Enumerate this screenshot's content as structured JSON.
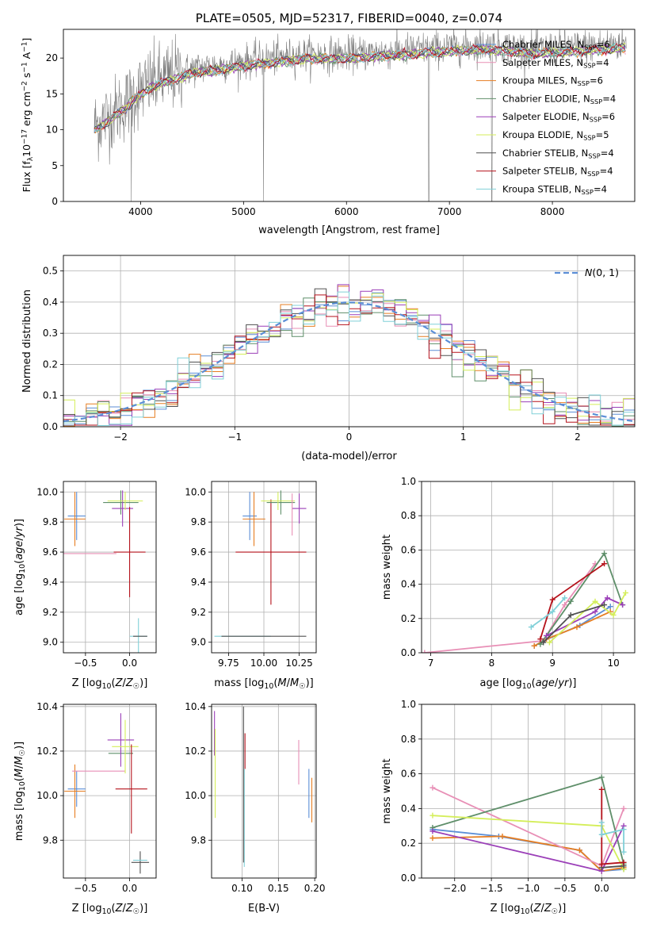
{
  "chart_data": [
    {
      "id": "spectrum",
      "type": "line",
      "title": "PLATE=0505, MJD=52317, FIBERID=0040, z=0.074",
      "xlabel": "wavelength [Angstrom, rest frame]",
      "ylabel": "Flux [f_λ10^-17 erg cm^-2 s^-1 A^-1]",
      "xlim": [
        3250,
        8800
      ],
      "ylim": [
        0,
        24
      ],
      "xticks": [
        4000,
        5000,
        6000,
        7000,
        8000
      ],
      "yticks": [
        0,
        5,
        10,
        15,
        20
      ],
      "legend_position": "right",
      "series": [
        {
          "name": "Chabrier MILES, N_SSP=6",
          "color": "#5b8ed6"
        },
        {
          "name": "Salpeter MILES, N_SSP=4",
          "color": "#e88fb6"
        },
        {
          "name": "Kroupa MILES, N_SSP=6",
          "color": "#e67e22"
        },
        {
          "name": "Chabrier ELODIE, N_SSP=4",
          "color": "#5f8f6a"
        },
        {
          "name": "Salpeter ELODIE, N_SSP=6",
          "color": "#9b3fb8"
        },
        {
          "name": "Kroupa ELODIE, N_SSP=5",
          "color": "#d4ee5a"
        },
        {
          "name": "Chabrier STELIB, N_SSP=4",
          "color": "#505050"
        },
        {
          "name": "Salpeter STELIB, N_SSP=4",
          "color": "#b5121b"
        },
        {
          "name": "Kroupa STELIB, N_SSP=4",
          "color": "#80d0d8"
        }
      ],
      "data_color": "#808080",
      "continuum": [
        [
          3550,
          10.5
        ],
        [
          3700,
          12
        ],
        [
          3850,
          13.5
        ],
        [
          3950,
          15
        ],
        [
          4100,
          16.5
        ],
        [
          4300,
          17.5
        ],
        [
          4500,
          18.5
        ],
        [
          4800,
          19
        ],
        [
          5000,
          19.5
        ],
        [
          5300,
          20
        ],
        [
          5600,
          20.5
        ],
        [
          6000,
          20.5
        ],
        [
          6500,
          21
        ],
        [
          7000,
          21.5
        ],
        [
          7400,
          21.8
        ],
        [
          7800,
          21.2
        ],
        [
          8200,
          21.5
        ],
        [
          8700,
          22
        ]
      ]
    },
    {
      "id": "histogram",
      "type": "line",
      "xlabel": "(data-model)/error",
      "ylabel": "Normed distribution",
      "xlim": [
        -2.5,
        2.5
      ],
      "ylim": [
        0,
        0.55
      ],
      "xticks": [
        -2,
        -1,
        0,
        1,
        2
      ],
      "yticks": [
        0.0,
        0.1,
        0.2,
        0.3,
        0.4,
        0.5
      ],
      "legend": "N(0,1)",
      "legend_color": "#5b8ed6",
      "bin_width": 0.1,
      "grid": true
    },
    {
      "id": "age_vs_Z",
      "type": "scatter",
      "xlabel": "Z [log10(Z/Z☉)]",
      "ylabel": "age  [log10(age/yr)]",
      "xlim": [
        -0.75,
        0.3
      ],
      "ylim": [
        8.93,
        10.07
      ],
      "xticks": [
        -0.5,
        0.0
      ],
      "yticks": [
        9.0,
        9.2,
        9.4,
        9.6,
        9.8,
        10.0
      ],
      "grid": true,
      "points": [
        {
          "x": -0.6,
          "y": 9.84,
          "xerr": 0.1,
          "yerr": 0.16,
          "color": "#5b8ed6"
        },
        {
          "x": -0.62,
          "y": 9.82,
          "xerr": 0.12,
          "yerr": 0.18,
          "color": "#e67e22"
        },
        {
          "x": -0.45,
          "y": 9.59,
          "xerr": 0.3,
          "yerr": 0.0,
          "color": "#e88fb6"
        },
        {
          "x": -0.1,
          "y": 9.93,
          "xerr": 0.2,
          "yerr": 0.08,
          "color": "#5f8f6a"
        },
        {
          "x": -0.08,
          "y": 9.89,
          "xerr": 0.12,
          "yerr": 0.12,
          "color": "#9b3fb8"
        },
        {
          "x": -0.05,
          "y": 9.94,
          "xerr": 0.2,
          "yerr": 0.06,
          "color": "#d4ee5a"
        },
        {
          "x": 0.0,
          "y": 9.6,
          "xerr": 0.18,
          "yerr": 0.3,
          "color": "#b5121b"
        },
        {
          "x": 0.1,
          "y": 9.04,
          "xerr": 0.1,
          "yerr": 0.12,
          "color": "#80d0d8"
        },
        {
          "x": 0.12,
          "y": 9.04,
          "xerr": 0.08,
          "yerr": 0.0,
          "color": "#505050"
        }
      ]
    },
    {
      "id": "age_vs_mass",
      "type": "scatter",
      "xlabel": "mass [log10(M/M☉)]",
      "xlim": [
        9.63,
        10.37
      ],
      "ylim": [
        8.93,
        10.07
      ],
      "xticks": [
        9.75,
        10.0,
        10.25
      ],
      "yticks": [
        9.0,
        9.2,
        9.4,
        9.6,
        9.8,
        10.0
      ],
      "grid": true,
      "points": [
        {
          "x": 9.85,
          "y": 9.04,
          "xerr": 0.2,
          "yerr": 0.0,
          "color": "#80d0d8"
        },
        {
          "x": 10.0,
          "y": 9.04,
          "xerr": 0.3,
          "yerr": 0.0,
          "color": "#505050"
        },
        {
          "x": 9.9,
          "y": 9.84,
          "xerr": 0.05,
          "yerr": 0.16,
          "color": "#5b8ed6"
        },
        {
          "x": 9.93,
          "y": 9.82,
          "xerr": 0.08,
          "yerr": 0.18,
          "color": "#e67e22"
        },
        {
          "x": 10.05,
          "y": 9.6,
          "xerr": 0.25,
          "yerr": 0.35,
          "color": "#b5121b"
        },
        {
          "x": 10.12,
          "y": 9.93,
          "xerr": 0.1,
          "yerr": 0.08,
          "color": "#5f8f6a"
        },
        {
          "x": 10.1,
          "y": 9.94,
          "xerr": 0.12,
          "yerr": 0.06,
          "color": "#d4ee5a"
        },
        {
          "x": 10.25,
          "y": 9.89,
          "xerr": 0.05,
          "yerr": 0.1,
          "color": "#9b3fb8"
        },
        {
          "x": 10.2,
          "y": 9.85,
          "xerr": 0.0,
          "yerr": 0.14,
          "color": "#e88fb6"
        }
      ]
    },
    {
      "id": "weight_vs_age",
      "type": "line",
      "xlabel": "age  [log10(age/yr)]",
      "ylabel": "mass weight",
      "xlim": [
        6.85,
        10.35
      ],
      "ylim": [
        0,
        1.0
      ],
      "xticks": [
        7,
        8,
        9,
        10
      ],
      "yticks": [
        0.0,
        0.2,
        0.4,
        0.6,
        0.8,
        1.0
      ],
      "grid": true,
      "series": [
        {
          "color": "#5b8ed6",
          "points": [
            [
              8.7,
              0.04
            ],
            [
              8.85,
              0.07
            ],
            [
              9.45,
              0.16
            ],
            [
              9.95,
              0.27
            ]
          ]
        },
        {
          "color": "#e67e22",
          "points": [
            [
              8.7,
              0.04
            ],
            [
              8.9,
              0.08
            ],
            [
              9.4,
              0.15
            ],
            [
              9.95,
              0.24
            ]
          ]
        },
        {
          "color": "#e88fb6",
          "points": [
            [
              6.9,
              0.0
            ],
            [
              8.85,
              0.07
            ],
            [
              9.2,
              0.28
            ],
            [
              9.7,
              0.52
            ]
          ]
        },
        {
          "color": "#5f8f6a",
          "points": [
            [
              8.8,
              0.05
            ],
            [
              9.3,
              0.3
            ],
            [
              9.85,
              0.58
            ],
            [
              10.15,
              0.28
            ]
          ]
        },
        {
          "color": "#9b3fb8",
          "points": [
            [
              8.9,
              0.1
            ],
            [
              9.7,
              0.24
            ],
            [
              9.9,
              0.32
            ],
            [
              10.15,
              0.28
            ]
          ]
        },
        {
          "color": "#d4ee5a",
          "points": [
            [
              8.95,
              0.06
            ],
            [
              9.7,
              0.3
            ],
            [
              10.0,
              0.22
            ],
            [
              10.2,
              0.35
            ]
          ]
        },
        {
          "color": "#505050",
          "points": [
            [
              8.85,
              0.06
            ],
            [
              9.3,
              0.22
            ],
            [
              9.85,
              0.28
            ]
          ]
        },
        {
          "color": "#b5121b",
          "points": [
            [
              8.8,
              0.08
            ],
            [
              9.0,
              0.31
            ],
            [
              9.85,
              0.52
            ]
          ]
        },
        {
          "color": "#80d0d8",
          "points": [
            [
              8.65,
              0.15
            ],
            [
              9.0,
              0.24
            ],
            [
              9.2,
              0.32
            ]
          ]
        }
      ]
    },
    {
      "id": "mass_vs_Z",
      "type": "scatter",
      "xlabel": "Z [log10(Z/Z☉)]",
      "ylabel": "mass [log10(M/M☉)]",
      "xlim": [
        -0.75,
        0.3
      ],
      "ylim": [
        9.63,
        10.41
      ],
      "xticks": [
        -0.5,
        0.0
      ],
      "yticks": [
        9.8,
        10.0,
        10.2,
        10.4
      ],
      "grid": true,
      "points": [
        {
          "x": -0.6,
          "y": 10.03,
          "xerr": 0.1,
          "yerr": 0.08,
          "color": "#5b8ed6"
        },
        {
          "x": -0.62,
          "y": 10.02,
          "xerr": 0.12,
          "yerr": 0.12,
          "color": "#e67e22"
        },
        {
          "x": -0.35,
          "y": 10.11,
          "xerr": 0.3,
          "yerr": 0.0,
          "color": "#e88fb6"
        },
        {
          "x": -0.1,
          "y": 10.19,
          "xerr": 0.14,
          "yerr": 0.0,
          "color": "#5f8f6a"
        },
        {
          "x": -0.1,
          "y": 10.25,
          "xerr": 0.15,
          "yerr": 0.12,
          "color": "#9b3fb8"
        },
        {
          "x": -0.05,
          "y": 10.22,
          "xerr": 0.15,
          "yerr": 0.12,
          "color": "#d4ee5a"
        },
        {
          "x": 0.02,
          "y": 10.03,
          "xerr": 0.18,
          "yerr": 0.2,
          "color": "#b5121b"
        },
        {
          "x": 0.12,
          "y": 9.7,
          "xerr": 0.1,
          "yerr": 0.05,
          "color": "#505050"
        },
        {
          "x": 0.12,
          "y": 9.71,
          "xerr": 0.08,
          "yerr": 0.0,
          "color": "#80d0d8"
        }
      ]
    },
    {
      "id": "mass_vs_ebv",
      "type": "scatter",
      "xlabel": "E(B-V)",
      "xlim": [
        0.058,
        0.202
      ],
      "ylim": [
        9.63,
        10.41
      ],
      "xticks": [
        0.1,
        0.15,
        0.2
      ],
      "yticks": [
        9.8,
        10.0,
        10.2,
        10.4
      ],
      "grid": true,
      "points": [
        {
          "x": 0.062,
          "y": 10.28,
          "xerr": 0.0,
          "yerr": 0.1,
          "color": "#9b3fb8"
        },
        {
          "x": 0.063,
          "y": 10.1,
          "xerr": 0.0,
          "yerr": 0.2,
          "color": "#d4ee5a"
        },
        {
          "x": 0.104,
          "y": 10.2,
          "xerr": 0.0,
          "yerr": 0.08,
          "color": "#b5121b"
        },
        {
          "x": 0.103,
          "y": 9.9,
          "xerr": 0.0,
          "yerr": 0.22,
          "color": "#80d0d8"
        },
        {
          "x": 0.102,
          "y": 10.05,
          "xerr": 0.0,
          "yerr": 0.35,
          "color": "#505050"
        },
        {
          "x": 0.178,
          "y": 10.15,
          "xerr": 0.0,
          "yerr": 0.1,
          "color": "#e88fb6"
        },
        {
          "x": 0.192,
          "y": 10.01,
          "xerr": 0.0,
          "yerr": 0.11,
          "color": "#5b8ed6"
        },
        {
          "x": 0.196,
          "y": 9.98,
          "xerr": 0.0,
          "yerr": 0.1,
          "color": "#e67e22"
        }
      ]
    },
    {
      "id": "weight_vs_Z",
      "type": "line",
      "xlabel": "Z [log10(Z/Z☉)]",
      "ylabel": "mass weight",
      "xlim": [
        -2.45,
        0.45
      ],
      "ylim": [
        0,
        1.0
      ],
      "xticks": [
        -2.0,
        -1.5,
        -1.0,
        -0.5,
        0.0
      ],
      "yticks": [
        0.0,
        0.2,
        0.4,
        0.6,
        0.8,
        1.0
      ],
      "grid": true,
      "series": [
        {
          "color": "#5b8ed6",
          "points": [
            [
              -2.3,
              0.28
            ],
            [
              -1.4,
              0.24
            ],
            [
              -0.3,
              0.16
            ],
            [
              0.0,
              0.04
            ],
            [
              0.3,
              0.05
            ]
          ]
        },
        {
          "color": "#e67e22",
          "points": [
            [
              -2.3,
              0.23
            ],
            [
              -1.35,
              0.24
            ],
            [
              -0.3,
              0.16
            ],
            [
              0.0,
              0.04
            ],
            [
              0.3,
              0.06
            ]
          ]
        },
        {
          "color": "#e88fb6",
          "points": [
            [
              -2.3,
              0.52
            ],
            [
              0.0,
              0.07
            ],
            [
              0.3,
              0.4
            ]
          ]
        },
        {
          "color": "#5f8f6a",
          "points": [
            [
              -2.3,
              0.29
            ],
            [
              0.0,
              0.58
            ],
            [
              0.3,
              0.08
            ]
          ]
        },
        {
          "color": "#9b3fb8",
          "points": [
            [
              -2.3,
              0.27
            ],
            [
              0.0,
              0.04
            ],
            [
              0.3,
              0.3
            ]
          ]
        },
        {
          "color": "#d4ee5a",
          "points": [
            [
              -2.3,
              0.36
            ],
            [
              0.0,
              0.3
            ],
            [
              0.3,
              0.05
            ]
          ]
        },
        {
          "color": "#505050",
          "points": [
            [
              0.0,
              0.06
            ],
            [
              0.3,
              0.07
            ]
          ]
        },
        {
          "color": "#b5121b",
          "points": [
            [
              0.0,
              0.51
            ],
            [
              0.0,
              0.08
            ],
            [
              0.3,
              0.09
            ]
          ]
        },
        {
          "color": "#80d0d8",
          "points": [
            [
              0.0,
              0.32
            ],
            [
              0.0,
              0.25
            ],
            [
              0.3,
              0.28
            ],
            [
              0.3,
              0.15
            ]
          ]
        }
      ]
    }
  ]
}
